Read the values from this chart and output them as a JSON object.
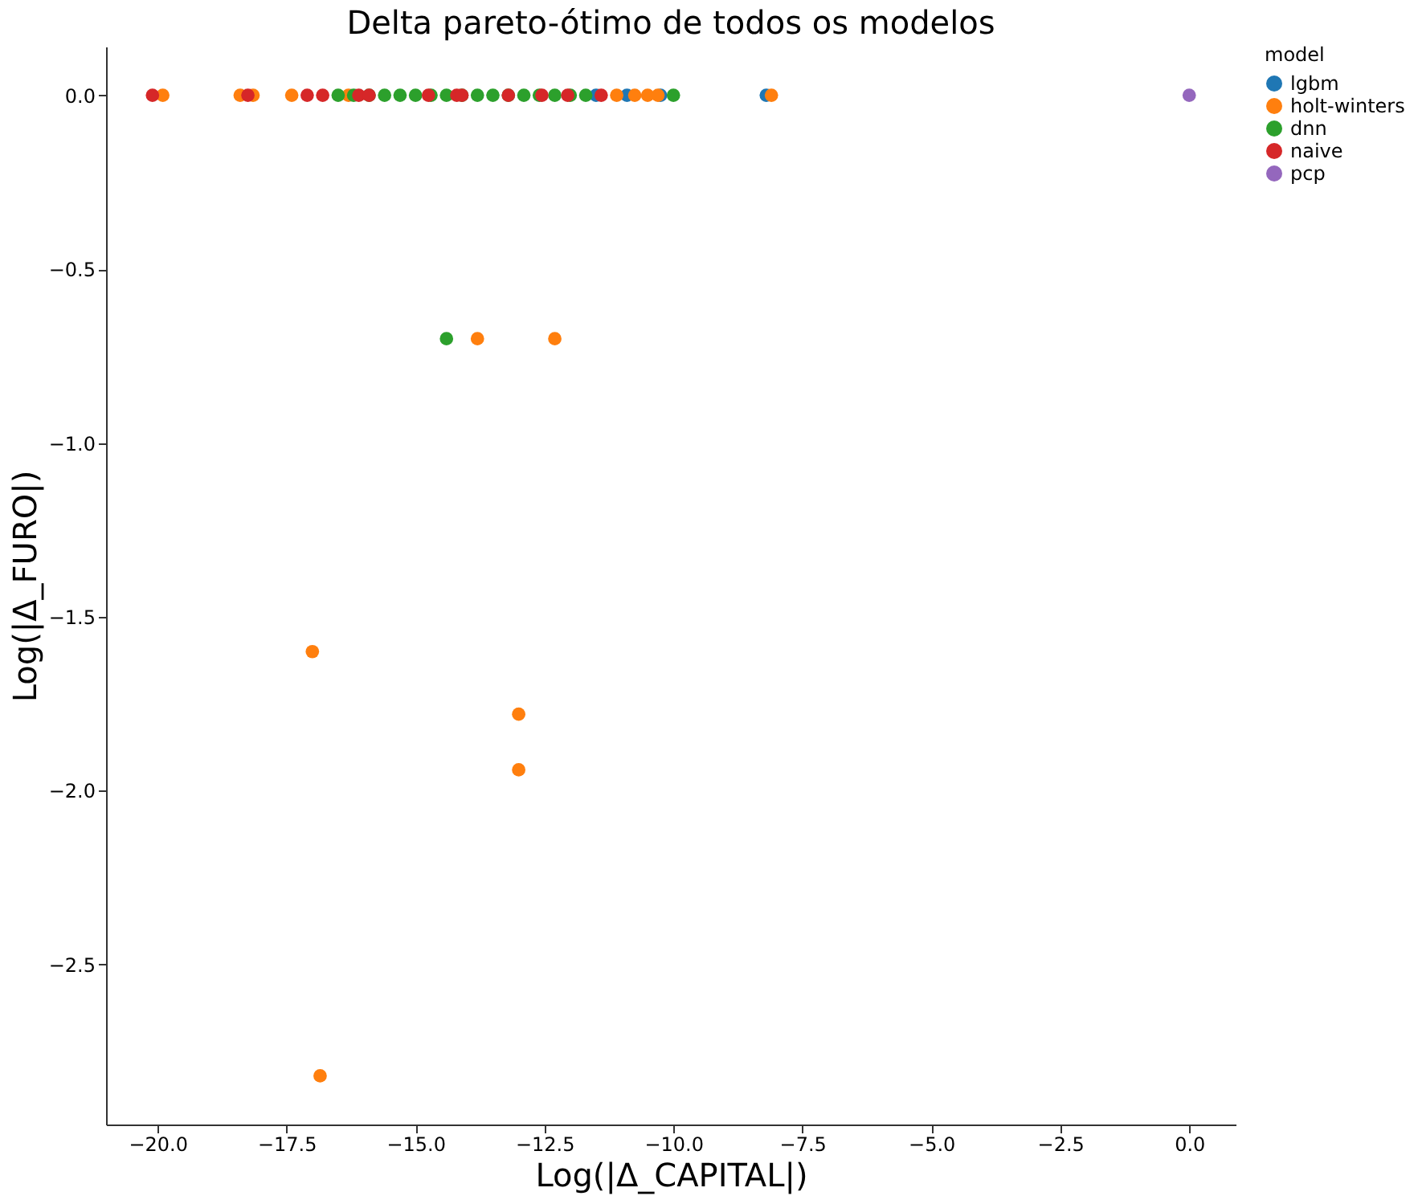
{
  "chart_data": {
    "type": "scatter",
    "title": "Delta pareto-ótimo de todos os modelos",
    "xlabel": "Log(|Δ_CAPITAL|)",
    "ylabel": "Log(|Δ_FURO|)",
    "legend_title": "model",
    "legend": "right",
    "grid": false,
    "marker": "circle",
    "xlim": [
      -21.0,
      0.9
    ],
    "ylim": [
      -2.96,
      0.14
    ],
    "xticks": [
      {
        "value": -20,
        "label": "−20.0"
      },
      {
        "value": -17.5,
        "label": "−17.5"
      },
      {
        "value": -15,
        "label": "−15.0"
      },
      {
        "value": -12.5,
        "label": "−12.5"
      },
      {
        "value": -10,
        "label": "−10.0"
      },
      {
        "value": -7.5,
        "label": "−7.5"
      },
      {
        "value": -5,
        "label": "−5.0"
      },
      {
        "value": -2.5,
        "label": "−2.5"
      },
      {
        "value": 0,
        "label": "0.0"
      }
    ],
    "yticks": [
      {
        "value": 0,
        "label": "0.0"
      },
      {
        "value": -0.5,
        "label": "−0.5"
      },
      {
        "value": -1,
        "label": "−1.0"
      },
      {
        "value": -1.5,
        "label": "−1.5"
      },
      {
        "value": -2,
        "label": "−2.0"
      },
      {
        "value": -2.5,
        "label": "−2.5"
      }
    ],
    "series": [
      {
        "name": "lgbm",
        "color": "#1f77b4",
        "x": [
          -11.5,
          -10.9,
          -10.25,
          -8.2
        ],
        "values": [
          0,
          0,
          0,
          0
        ]
      },
      {
        "name": "holt-winters",
        "color": "#ff7f0e",
        "x": [
          -19.9,
          -18.4,
          -18.15,
          -17.4,
          -16.3,
          -11.1,
          -10.75,
          -10.5,
          -10.3,
          -8.1,
          -13.8,
          -12.3,
          -17.0,
          -13.0,
          -13.0,
          -16.85
        ],
        "values": [
          0,
          0,
          0,
          0,
          0,
          0,
          0,
          0,
          0,
          0,
          -0.7,
          -0.7,
          -1.6,
          -1.78,
          -1.94,
          -2.82
        ]
      },
      {
        "name": "dnn",
        "color": "#2ca02c",
        "x": [
          -16.5,
          -16.2,
          -15.9,
          -15.6,
          -15.3,
          -15.0,
          -14.7,
          -14.4,
          -14.1,
          -13.8,
          -13.5,
          -13.2,
          -12.9,
          -12.6,
          -12.3,
          -12.0,
          -11.7,
          -10.0,
          -14.4
        ],
        "values": [
          0,
          0,
          0,
          0,
          0,
          0,
          0,
          0,
          0,
          0,
          0,
          0,
          0,
          0,
          0,
          0,
          0,
          0,
          -0.7
        ]
      },
      {
        "name": "naive",
        "color": "#d62728",
        "x": [
          -20.1,
          -18.25,
          -17.1,
          -16.8,
          -16.1,
          -15.9,
          -14.75,
          -14.2,
          -14.1,
          -13.2,
          -12.55,
          -12.05,
          -11.4
        ],
        "values": [
          0,
          0,
          0,
          0,
          0,
          0,
          0,
          0,
          0,
          0,
          0,
          0,
          0
        ]
      },
      {
        "name": "pcp",
        "color": "#9467bd",
        "x": [
          0.0
        ],
        "values": [
          0
        ]
      }
    ]
  }
}
